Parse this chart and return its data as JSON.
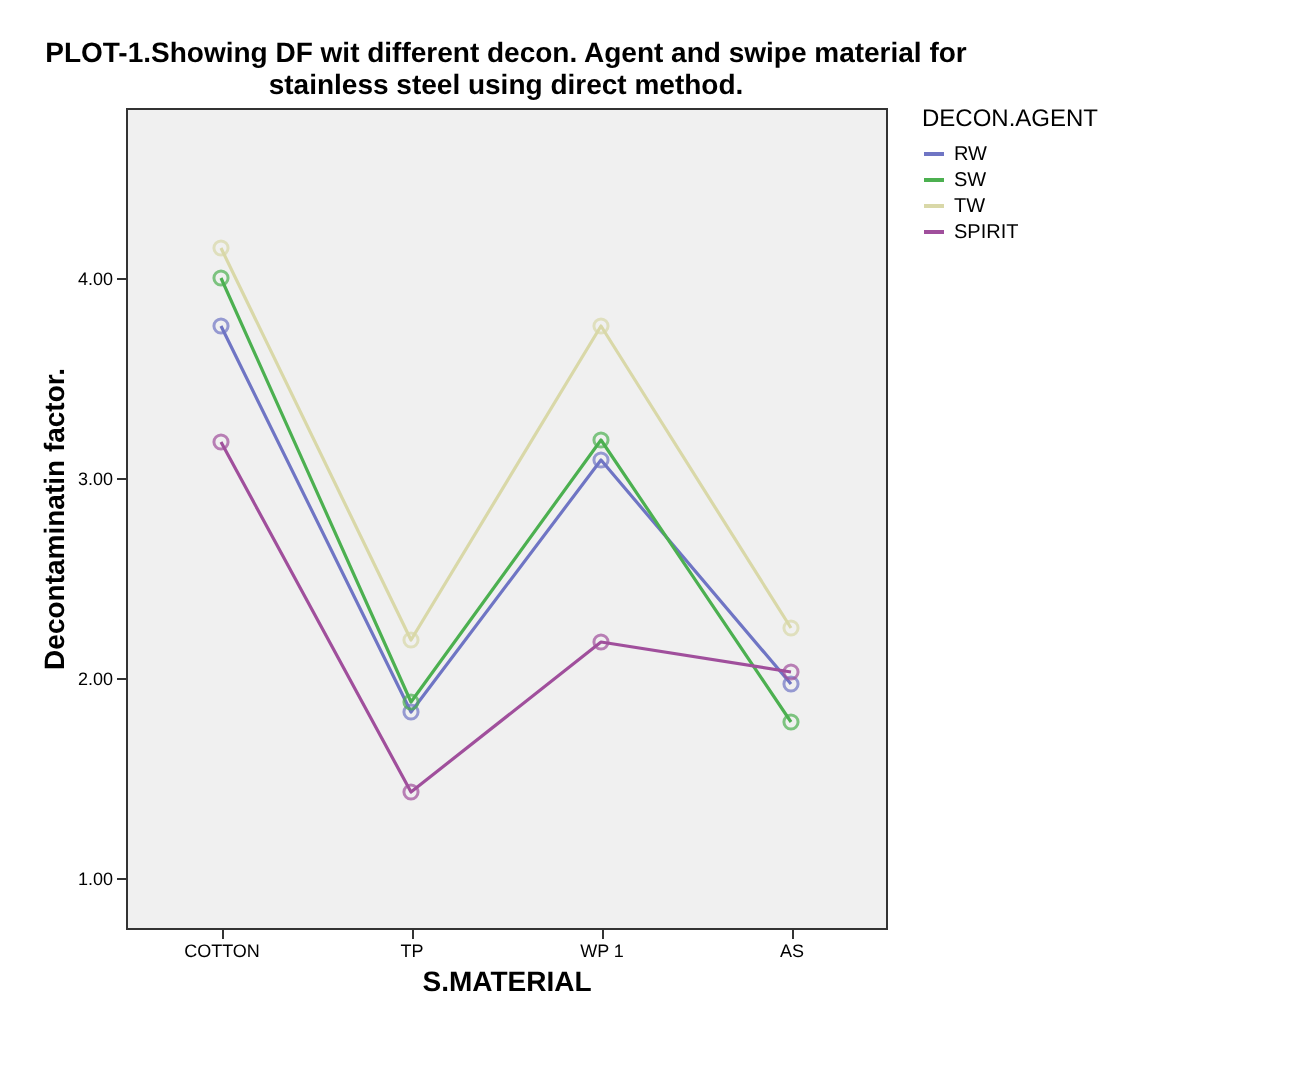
{
  "chart_data": {
    "type": "line",
    "title": [
      "PLOT-1.Showing DF wit different decon. Agent and swipe material for",
      "stainless steel using direct method."
    ],
    "xlabel": "S.MATERIAL",
    "ylabel": "Decontaminatin factor.",
    "legend_title": "DECON.AGENT",
    "legend": "right",
    "marker": "circle",
    "line_style": "solid",
    "grid": false,
    "categories": [
      "COTTON",
      "TP",
      "WP 1",
      "AS"
    ],
    "ylim": [
      0.75,
      4.85
    ],
    "yticks": [
      {
        "value": 1,
        "label": "1.00"
      },
      {
        "value": 2,
        "label": "2.00"
      },
      {
        "value": 3,
        "label": "3.00"
      },
      {
        "value": 4,
        "label": "4.00"
      }
    ],
    "series": [
      {
        "name": "RW",
        "color": "#6f75c4",
        "values": [
          3.76,
          1.83,
          3.09,
          1.97
        ]
      },
      {
        "name": "SW",
        "color": "#4cb050",
        "values": [
          4.0,
          1.88,
          3.19,
          1.78
        ]
      },
      {
        "name": "TW",
        "color": "#d9d8a8",
        "values": [
          4.15,
          2.19,
          3.76,
          2.25
        ]
      },
      {
        "name": "SPIRIT",
        "color": "#a04f9c",
        "values": [
          3.18,
          1.43,
          2.18,
          2.03
        ]
      }
    ]
  }
}
